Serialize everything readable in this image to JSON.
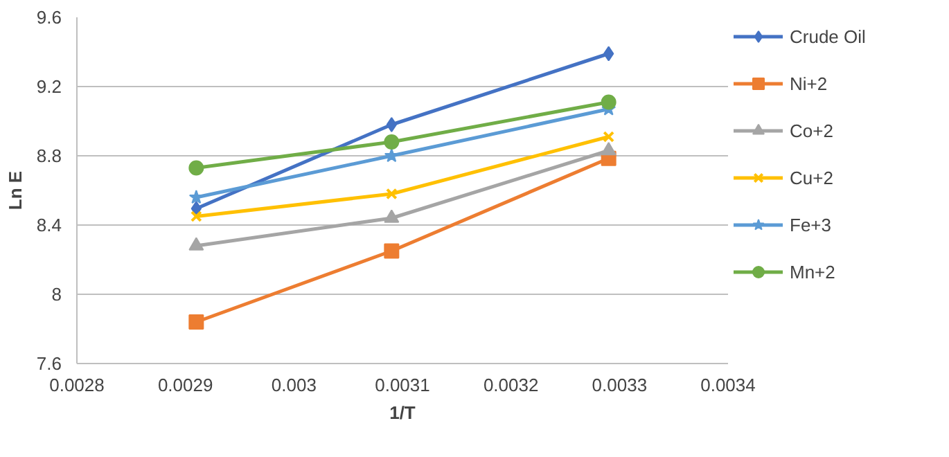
{
  "chart_data": {
    "type": "line",
    "xlabel": "1/T",
    "ylabel": "Ln E",
    "x": [
      0.00291,
      0.00309,
      0.00329
    ],
    "xlim": [
      0.0028,
      0.0034
    ],
    "xticks": [
      0.0028,
      0.0029,
      0.003,
      0.0031,
      0.0032,
      0.0033,
      0.0034
    ],
    "ylim": [
      7.6,
      9.6
    ],
    "yticks": [
      7.6,
      8,
      8.4,
      8.8,
      9.2,
      9.6
    ],
    "grid": "y",
    "legend": "right",
    "line_style": "solid",
    "series": [
      {
        "name": "Crude Oil",
        "color": "#4472c4",
        "marker": "diamond",
        "values": [
          8.495,
          8.98,
          9.39
        ]
      },
      {
        "name": "Ni+2",
        "color": "#ed7d31",
        "marker": "square",
        "values": [
          7.84,
          8.25,
          8.785
        ]
      },
      {
        "name": "Co+2",
        "color": "#a5a5a5",
        "marker": "triangle",
        "values": [
          8.28,
          8.44,
          8.83
        ]
      },
      {
        "name": "Cu+2",
        "color": "#ffc000",
        "marker": "cross",
        "values": [
          8.45,
          8.58,
          8.91
        ]
      },
      {
        "name": "Fe+3",
        "color": "#5b9bd5",
        "marker": "star",
        "values": [
          8.56,
          8.8,
          9.07
        ]
      },
      {
        "name": "Mn+2",
        "color": "#70ad47",
        "marker": "circle",
        "values": [
          8.73,
          8.88,
          9.11
        ]
      }
    ]
  }
}
